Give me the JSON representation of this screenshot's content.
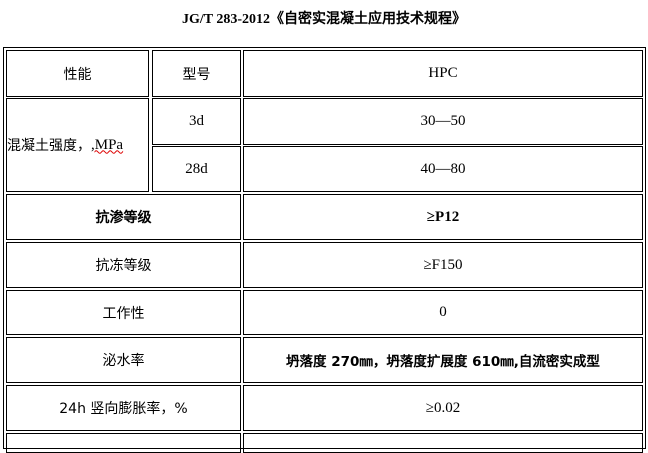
{
  "title": "JG/T 283-2012《自密实混凝土应用技术规程》",
  "header": {
    "property": "性能",
    "model": "型号",
    "value": "HPC"
  },
  "strength": {
    "label": "混凝土强度，",
    "unit": ",MPa",
    "rows": [
      {
        "age": "3d",
        "value": "30—50"
      },
      {
        "age": "28d",
        "value": "40—80"
      }
    ]
  },
  "rows": [
    {
      "label": "抗渗等级",
      "value": "≥P12",
      "bold": true
    },
    {
      "label": "抗冻等级",
      "value": "≥F150"
    },
    {
      "label": "工作性",
      "value": "0"
    },
    {
      "label": "泌水率",
      "value": "坍落度 270㎜，坍落度扩展度 610㎜,自流密实成型"
    },
    {
      "label": "24h 竖向膨胀率，%",
      "value": "≥0.02"
    }
  ]
}
